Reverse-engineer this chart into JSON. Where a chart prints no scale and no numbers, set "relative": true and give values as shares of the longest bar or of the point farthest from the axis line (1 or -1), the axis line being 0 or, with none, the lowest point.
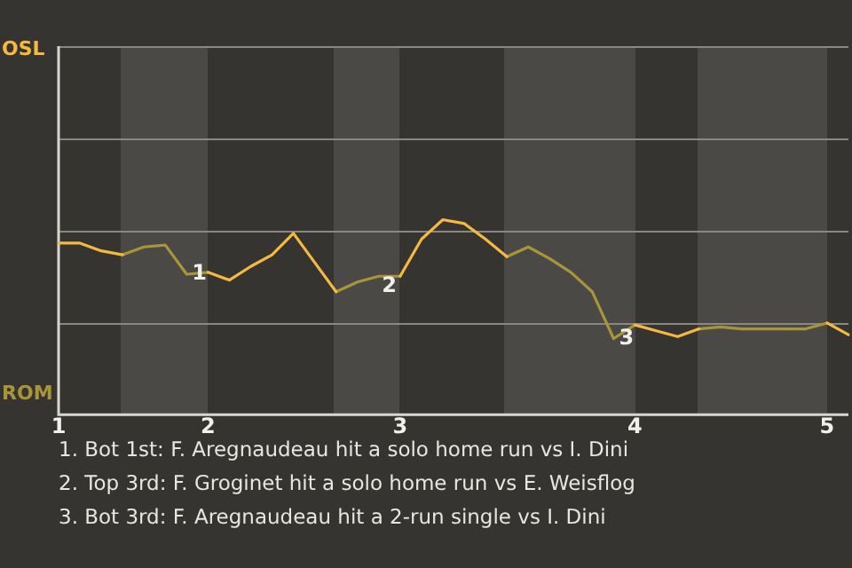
{
  "chart_data": {
    "type": "line",
    "relative": true,
    "categories": [
      "1",
      null,
      null,
      null,
      null,
      null,
      null,
      "2",
      null,
      null,
      null,
      null,
      null,
      null,
      null,
      null,
      "3",
      null,
      null,
      null,
      null,
      null,
      null,
      null,
      null,
      null,
      null,
      "4",
      null,
      null,
      null,
      null,
      null,
      null,
      null,
      null,
      "5",
      null
    ],
    "series": [
      {
        "color": "#f5b942",
        "values": [
          0.88,
          0.88,
          0.84,
          0.82,
          null,
          null,
          null,
          0.73,
          0.69,
          0.76,
          0.82,
          0.93,
          0.78,
          0.63,
          null,
          null,
          0.71,
          0.9,
          1,
          0.98,
          0.9,
          0.81,
          null,
          null,
          null,
          null,
          null,
          0.46,
          0.43,
          0.4,
          0.44,
          null,
          null,
          null,
          null,
          null,
          0.47,
          0.41
        ]
      },
      {
        "color": "#a8953a",
        "values": [
          null,
          null,
          null,
          0.82,
          0.86,
          0.87,
          0.72,
          0.73,
          null,
          null,
          null,
          null,
          null,
          0.63,
          0.68,
          0.71,
          0.71,
          null,
          null,
          null,
          null,
          0.81,
          0.86,
          0.8,
          0.73,
          0.63,
          0.39,
          0.46,
          null,
          null,
          0.44,
          0.45,
          0.44,
          0.44,
          0.44,
          0.44,
          0.47,
          null
        ]
      }
    ],
    "ref_lines": [
      {
        "axis": "y",
        "value": 0.47,
        "color": "#8a8884"
      },
      {
        "axis": "y",
        "value": 0.94,
        "color": "#8a8884"
      },
      {
        "axis": "y",
        "value": 1.42,
        "color": "#8a8884"
      },
      {
        "axis": "y",
        "value": 1.89,
        "color": "#8a8884"
      }
    ],
    "legend": false,
    "marker": "none",
    "line_style": "solid",
    "annotations": [
      "OSL",
      "ROM",
      {
        "text": "1",
        "y": 0.72
      },
      {
        "text": "2",
        "y": 0.71
      },
      {
        "text": "3",
        "y": 0.39
      },
      "1. Bot 1st: F. Aregnaudeau hit a solo home run vs I. Dini",
      "2. Top 3rd: F. Groginet hit a solo home run vs E. Weisflog",
      "3. Bot 3rd: F. Aregnaudeau hit a 2-run single vs I. Dini"
    ]
  }
}
